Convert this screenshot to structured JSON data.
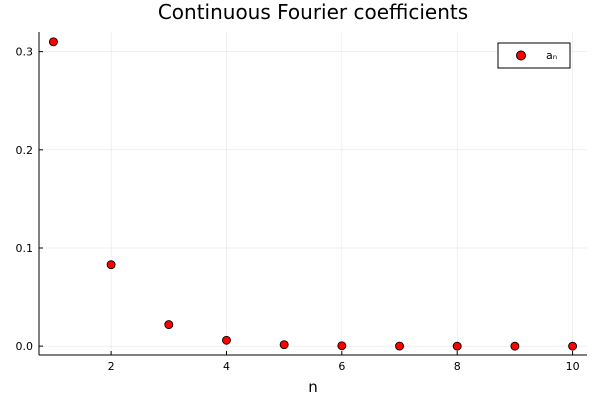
{
  "chart_data": {
    "type": "scatter",
    "title": "Continuous Fourier coefficients",
    "xlabel": "n",
    "ylabel": "",
    "xlim": [
      0.75,
      10.25
    ],
    "ylim": [
      -0.009,
      0.32
    ],
    "xticks": [
      "2",
      "4",
      "6",
      "8",
      "10"
    ],
    "yticks": [
      "0.0",
      "0.1",
      "0.2",
      "0.3"
    ],
    "grid": true,
    "legend_position": "top-right",
    "series": [
      {
        "name": "aₙ",
        "color": "#ff0000",
        "x": [
          1,
          2,
          3,
          4,
          5,
          6,
          7,
          8,
          9,
          10
        ],
        "y": [
          0.31,
          0.083,
          0.022,
          0.006,
          0.0015,
          0.0004,
          0.0001,
          0.0,
          0.0,
          0.0
        ]
      }
    ]
  }
}
